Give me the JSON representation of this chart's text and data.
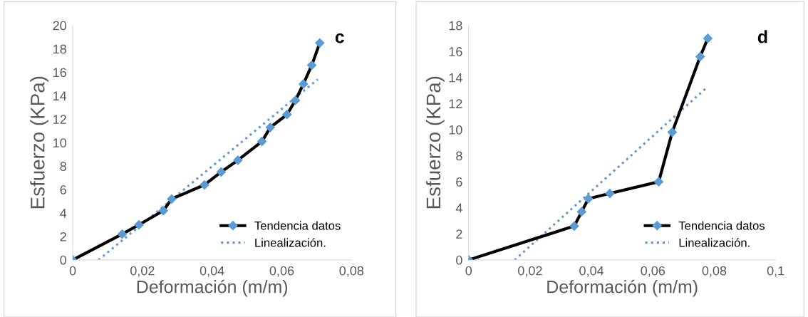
{
  "chart_data": [
    {
      "type": "line",
      "xlabel": "Deformación (m/m)",
      "ylabel": "Esfuerzo (KPa)",
      "annotations": [
        "c"
      ],
      "xlim": [
        0,
        0.08
      ],
      "ylim": [
        0,
        20
      ],
      "xticks": [
        {
          "value": 0,
          "label": "0"
        },
        {
          "value": 0.02,
          "label": "0,02"
        },
        {
          "value": 0.04,
          "label": "0,04"
        },
        {
          "value": 0.06,
          "label": "0,06"
        },
        {
          "value": 0.08,
          "label": "0,08"
        }
      ],
      "yticks": [
        0,
        2,
        4,
        6,
        8,
        10,
        12,
        14,
        16,
        18,
        20
      ],
      "grid": false,
      "legend": "bottom right",
      "series": [
        {
          "name": "Tendencia datos",
          "color": "#000000",
          "marker": "diamond",
          "line_style": "solid",
          "x": [
            0,
            0.0142,
            0.019,
            0.026,
            0.0284,
            0.0378,
            0.0426,
            0.0474,
            0.0543,
            0.0567,
            0.0615,
            0.0639,
            0.0662,
            0.0686,
            0.0709
          ],
          "values": [
            0,
            2.2,
            3.0,
            4.2,
            5.2,
            6.4,
            7.5,
            8.5,
            10.1,
            11.3,
            12.4,
            13.6,
            15.0,
            16.6,
            18.5
          ]
        },
        {
          "name": "Linealización.",
          "color": "#5b9bd5",
          "marker": "none",
          "line_style": "dotted",
          "x": [
            0.0074,
            0.0703
          ],
          "values": [
            0,
            15.4
          ]
        }
      ]
    },
    {
      "type": "line",
      "xlabel": "Deformación (m/m)",
      "ylabel": "Esfuerzo (KPa)",
      "annotations": [
        "d"
      ],
      "xlim": [
        0,
        0.1
      ],
      "ylim": [
        0,
        18
      ],
      "xticks": [
        {
          "value": 0,
          "label": "0"
        },
        {
          "value": 0.02,
          "label": "0,02"
        },
        {
          "value": 0.04,
          "label": "0,04"
        },
        {
          "value": 0.06,
          "label": "0,06"
        },
        {
          "value": 0.08,
          "label": "0,08"
        },
        {
          "value": 0.1,
          "label": "0,1"
        }
      ],
      "yticks": [
        0,
        2,
        4,
        6,
        8,
        10,
        12,
        14,
        16,
        18
      ],
      "grid": false,
      "legend": "bottom right",
      "series": [
        {
          "name": "Tendencia datos",
          "color": "#000000",
          "marker": "diamond",
          "line_style": "solid",
          "x": [
            0,
            0.0344,
            0.0368,
            0.039,
            0.046,
            0.0619,
            0.0663,
            0.0754,
            0.0779
          ],
          "values": [
            0,
            2.6,
            3.7,
            4.7,
            5.1,
            6.0,
            9.8,
            15.6,
            17.0
          ]
        },
        {
          "name": "Linealización.",
          "color": "#5b9bd5",
          "marker": "none",
          "line_style": "dotted",
          "x": [
            0.015,
            0.0779
          ],
          "values": [
            0,
            13.3
          ]
        }
      ]
    }
  ]
}
